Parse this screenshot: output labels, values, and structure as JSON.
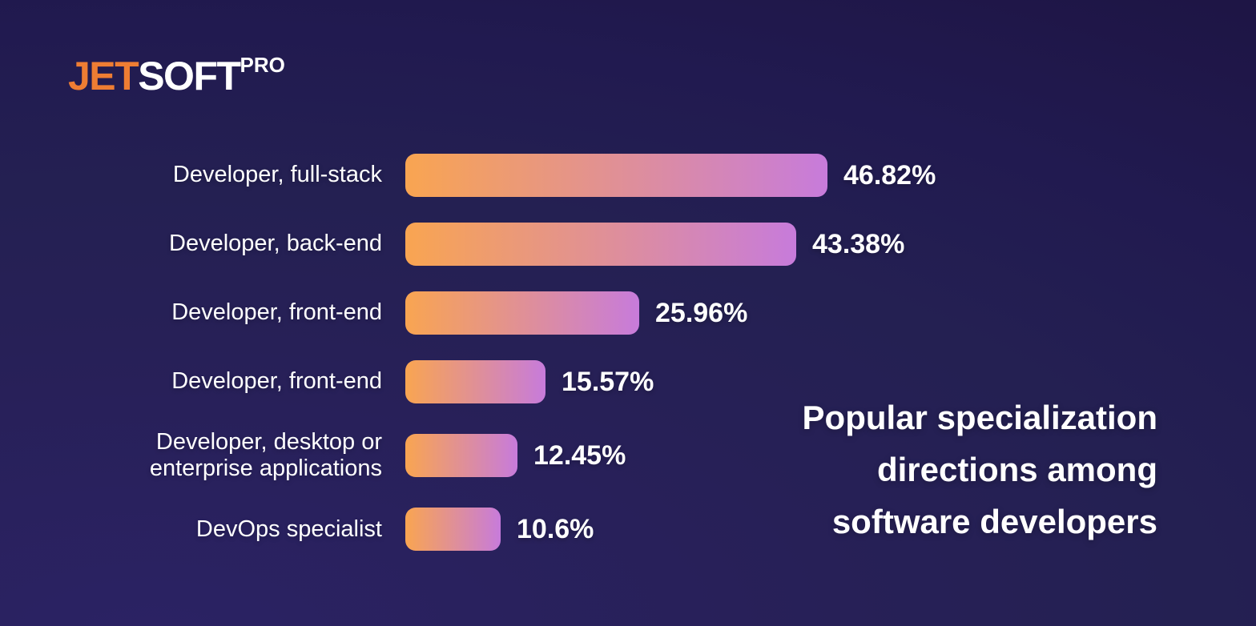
{
  "logo": {
    "jet": "JET",
    "soft": "SOFT",
    "pro": "PRO"
  },
  "headline": {
    "lines": [
      "Popular specialization",
      "directions among",
      "software developers"
    ]
  },
  "chart_data": {
    "type": "bar",
    "orientation": "horizontal",
    "title": "Popular specialization directions among software developers",
    "categories": [
      "Developer, full-stack",
      "Developer, back-end",
      "Developer, front-end",
      "Developer, front-end",
      "Developer, desktop or enterprise applications",
      "DevOps specialist"
    ],
    "values": [
      46.82,
      43.38,
      25.96,
      15.57,
      12.45,
      10.6
    ],
    "xlim": [
      0,
      50
    ],
    "grid": false,
    "legend": false,
    "bar_gradient_start": "#F9A551",
    "bar_gradient_end": "#C77BDB",
    "rows": [
      {
        "label": "Developer, full-stack",
        "value": 46.82,
        "value_label": "46.82%"
      },
      {
        "label": "Developer, back-end",
        "value": 43.38,
        "value_label": "43.38%"
      },
      {
        "label": "Developer, front-end",
        "value": 25.96,
        "value_label": "25.96%"
      },
      {
        "label": "Developer, front-end",
        "value": 15.57,
        "value_label": "15.57%"
      },
      {
        "label": "Developer, desktop or enterprise applications",
        "value": 12.45,
        "value_label": "12.45%"
      },
      {
        "label": "DevOps specialist",
        "value": 10.6,
        "value_label": "10.6%"
      }
    ]
  },
  "colors": {
    "background_dark": "#1E1545",
    "background_light": "#2B2264",
    "logo_orange": "#EE7D33",
    "text_white": "#FFFFFF",
    "bar_gradient_start": "#F9A551",
    "bar_gradient_end": "#C77BDB"
  }
}
